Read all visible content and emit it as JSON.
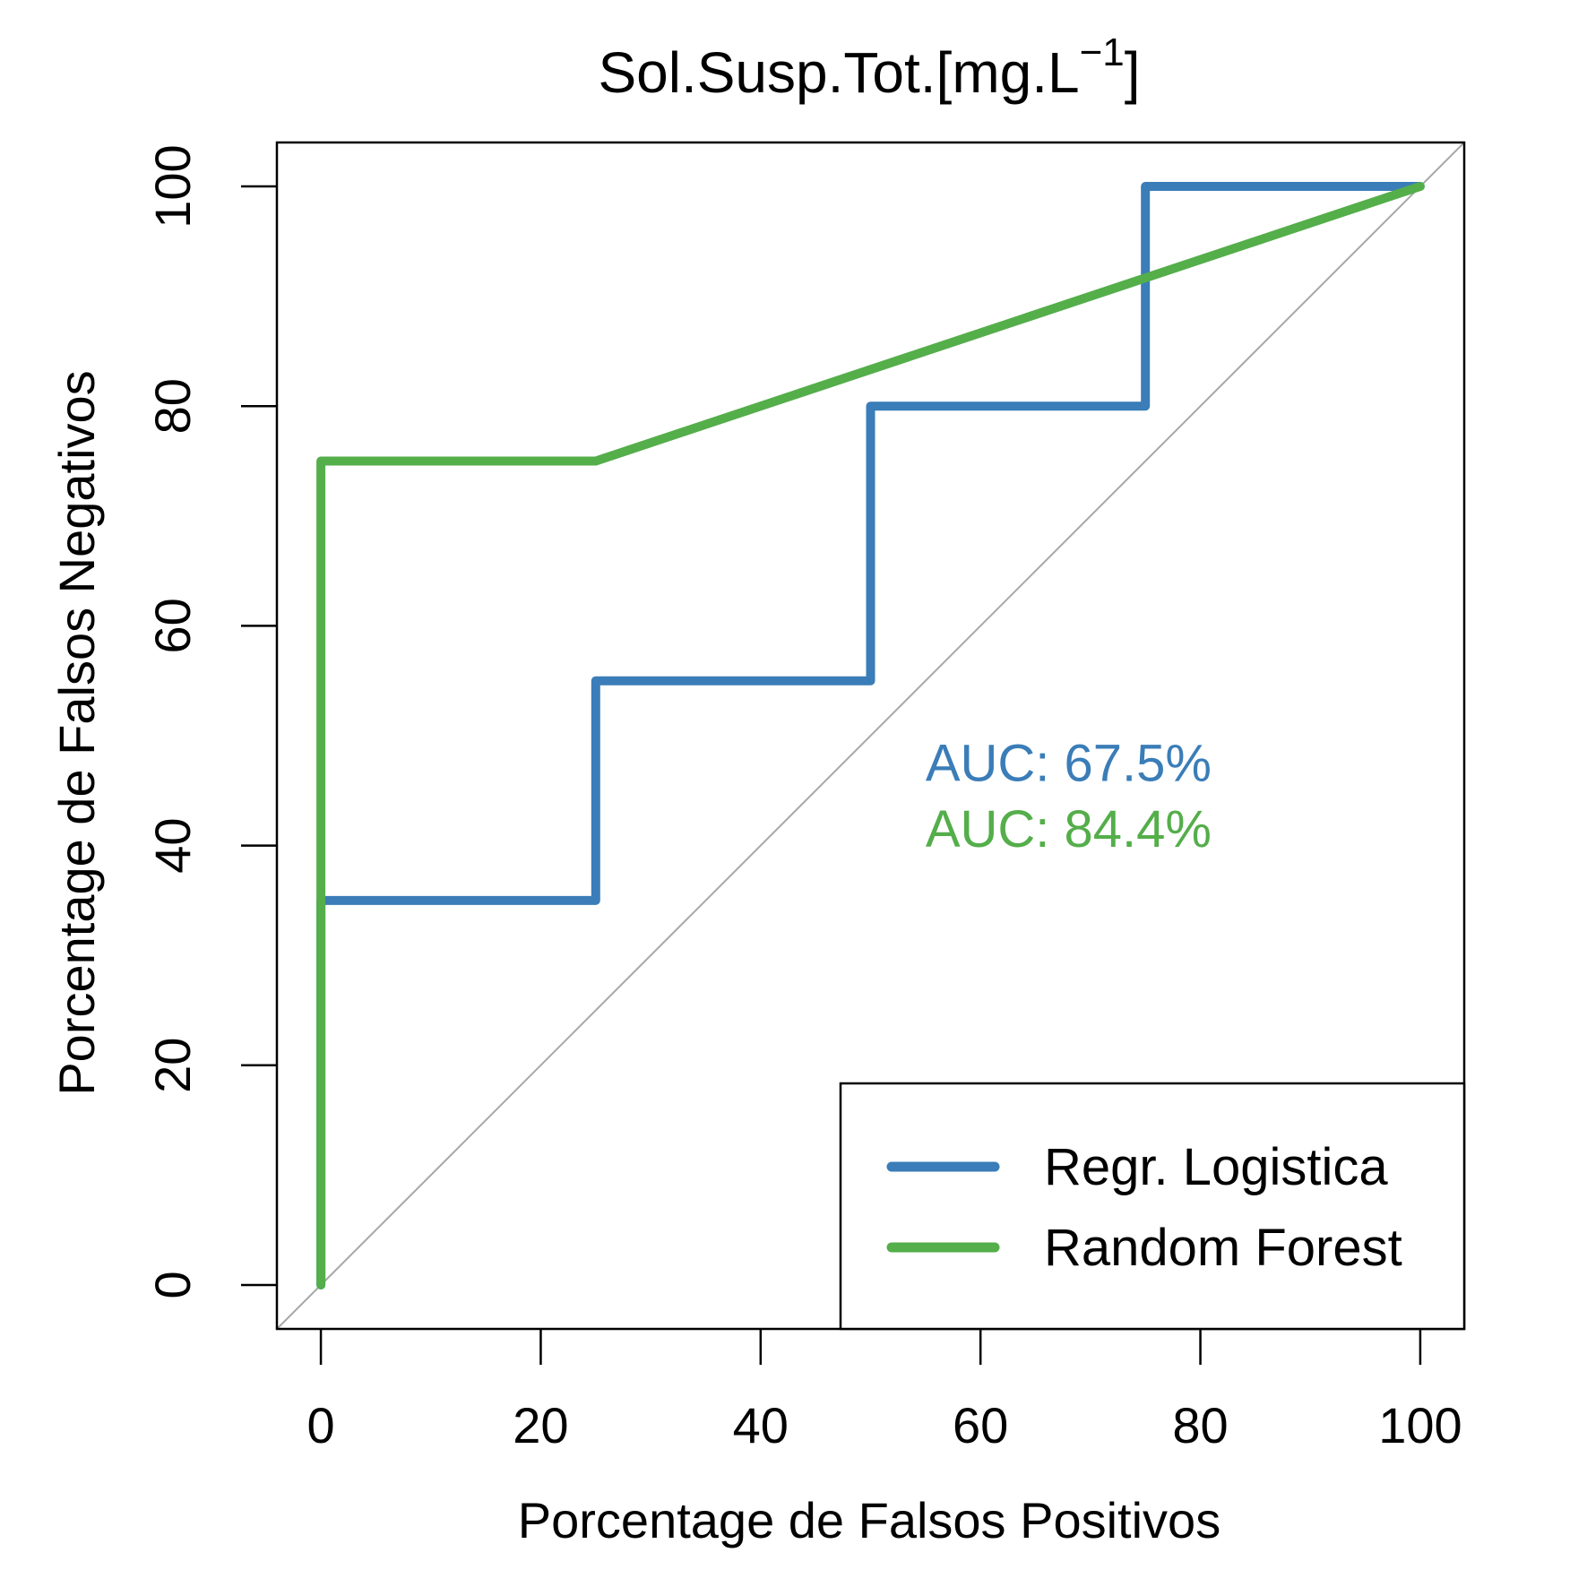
{
  "chart_data": {
    "type": "line",
    "title": "Sol.Susp.Tot.[mg.L",
    "title_superscript": "−1",
    "title_suffix": "]",
    "xlabel": "Porcentage de Falsos Positivos",
    "ylabel": "Porcentage de Falsos Negativos",
    "xlim": [
      -4,
      104
    ],
    "ylim": [
      -4,
      104
    ],
    "x_ticks": [
      0,
      20,
      40,
      60,
      80,
      100
    ],
    "y_ticks": [
      0,
      20,
      40,
      60,
      80,
      100
    ],
    "x_tick_labels": [
      "0",
      "20",
      "40",
      "60",
      "80",
      "100"
    ],
    "y_tick_labels": [
      "0",
      "20",
      "40",
      "60",
      "80",
      "100"
    ],
    "grid": false,
    "diagonal_reference": {
      "x": [
        0,
        100
      ],
      "y": [
        0,
        100
      ],
      "color": "#A8A8A8"
    },
    "series": [
      {
        "name": "Regr. Logistica",
        "color": "#3A7DB8",
        "x": [
          0,
          0,
          25,
          25,
          50,
          50,
          75,
          75,
          100
        ],
        "y": [
          0,
          35,
          35,
          55,
          55,
          80,
          80,
          100,
          100
        ]
      },
      {
        "name": "Random Forest",
        "color": "#54AE4A",
        "x": [
          0,
          0,
          25,
          100
        ],
        "y": [
          0,
          75,
          75,
          100
        ]
      }
    ],
    "annotations": [
      {
        "text": "AUC: 67.5%",
        "color": "#3A7DB8",
        "x": 55,
        "y": 47.5
      },
      {
        "text": "AUC: 84.4%",
        "color": "#54AE4A",
        "x": 55,
        "y": 41.5
      }
    ],
    "legend": {
      "placement": "bottom-right"
    }
  }
}
